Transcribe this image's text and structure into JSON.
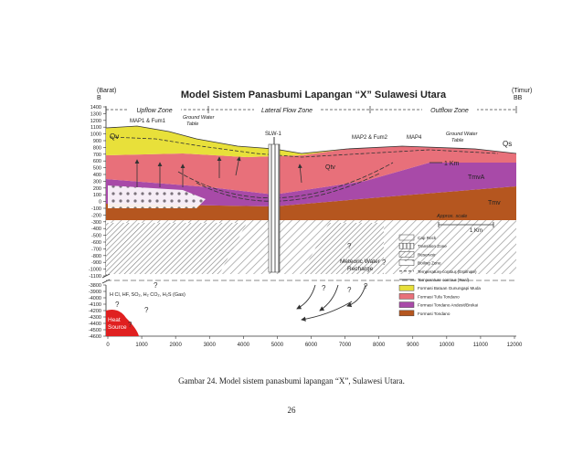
{
  "figure": {
    "title": "Model Sistem Panasbumi Lapangan “X” Sulawesi Utara",
    "left_dir": "(Barat)",
    "left_label": "B",
    "right_dir": "(Timur)",
    "right_label": "BB",
    "zones": [
      "Upflow Zone",
      "Lateral Flow Zone",
      "Outflow Zone"
    ],
    "y_ticks_upper": [
      "1400",
      "1300",
      "1200",
      "1100",
      "1000",
      "900",
      "800",
      "700",
      "600",
      "500",
      "400",
      "300",
      "200",
      "100",
      "0",
      "-100",
      "-200",
      "-300",
      "-400",
      "-500",
      "-600",
      "-700",
      "-800",
      "-900",
      "-1000",
      "-1100"
    ],
    "y_ticks_lower": [
      "-3800",
      "-3900",
      "-4000",
      "-4100",
      "-4200",
      "-4300",
      "-4400",
      "-4500",
      "-4600"
    ],
    "x_ticks": [
      "0",
      "1000",
      "2000",
      "3000",
      "4000",
      "5000",
      "6000",
      "7000",
      "8000",
      "9000",
      "10000",
      "11000",
      "12000"
    ],
    "labels": {
      "map1": "MAP1 & Fum1",
      "gwt_left_1": "Ground Water",
      "gwt_left_2": "Table",
      "slw": "SLW-1",
      "map2": "MAP2 & Fum2",
      "map4": "MAP4",
      "gwt_right_1": "Ground Water",
      "gwt_right_2": "Table",
      "qs": "Qs",
      "qv": "Qv",
      "qtv": "Qtv",
      "km_top": "1 Km",
      "tmva": "TmvA",
      "tmv": "Tmv",
      "approx": "Approx. scale",
      "km_scale": "1 Km",
      "meteoric_1": "Meteoric Water",
      "meteoric_2": "Recharge",
      "gas": "H Cl, HF, SO₂, H₂ CO₂, H₂S (Gas)",
      "heat_1": "Heat",
      "heat_2": "Source",
      "q": "?"
    },
    "legend": [
      {
        "key": "cap-rock",
        "label": "Cap Rock"
      },
      {
        "key": "transition",
        "label": "Transition Zone"
      },
      {
        "key": "reservoir",
        "label": "Reservoir"
      },
      {
        "key": "boiling",
        "label": "Boiling Zone"
      },
      {
        "key": "temp-est",
        "label": "Temperature contour (Estimate)"
      },
      {
        "key": "temp-real",
        "label": "Temperature contour (Real)"
      },
      {
        "key": "f1",
        "label": "Formasi Batuan Gunungapi Muda",
        "color": "#e8e03a"
      },
      {
        "key": "f2",
        "label": "Formasi Tufa Tondano",
        "color": "#e8707a"
      },
      {
        "key": "f3",
        "label": "Formasi Tondano Andesit/Brekai",
        "color": "#a84aa8"
      },
      {
        "key": "f4",
        "label": "Formasi Tondano",
        "color": "#b5561f"
      }
    ]
  },
  "caption": "Gambar 24. Model sistem panasbumi lapangan “X”, Sulawesi Utara.",
  "page_number": "26"
}
